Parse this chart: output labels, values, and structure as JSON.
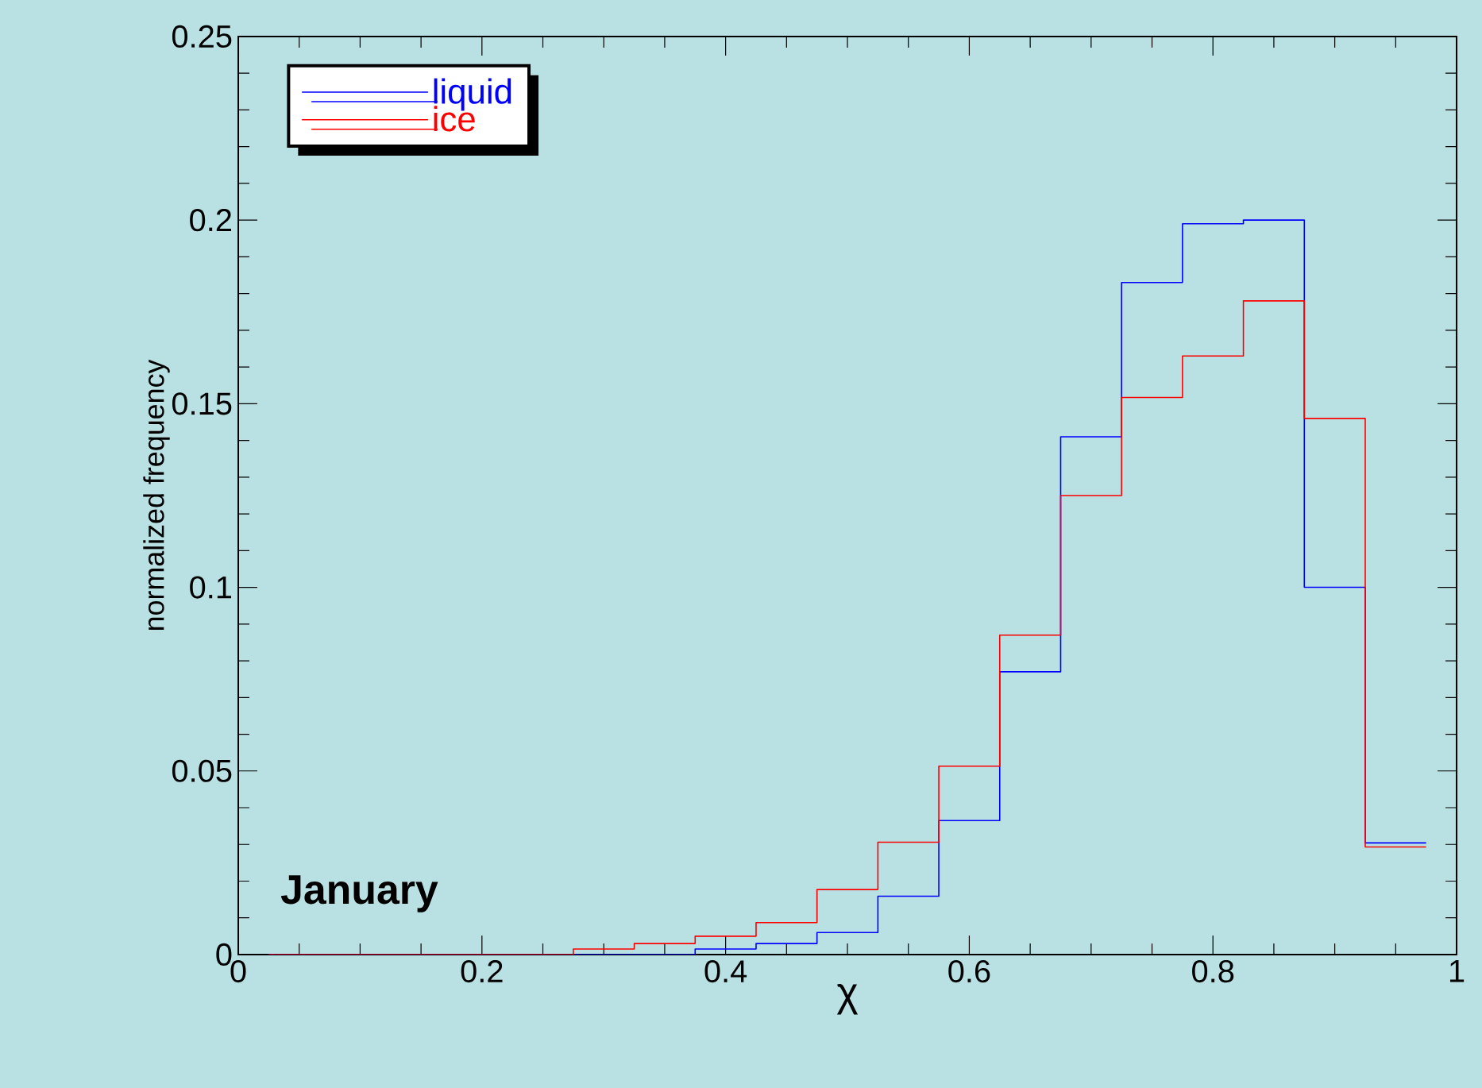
{
  "chart_data": {
    "type": "histogram",
    "xlabel": "χ",
    "ylabel": "normalized frequency",
    "bins": [
      0.025,
      0.075,
      0.125,
      0.175,
      0.225,
      0.275,
      0.325,
      0.375,
      0.425,
      0.475,
      0.525,
      0.575,
      0.625,
      0.675,
      0.725,
      0.775,
      0.825,
      0.875,
      0.925,
      0.975
    ],
    "series": [
      {
        "name": "liquid",
        "color": "#0000ff",
        "values": [
          0,
          0,
          0,
          0,
          0,
          0,
          0,
          0.0015,
          0.003,
          0.006,
          0.0159,
          0.0365,
          0.077,
          0.141,
          0.183,
          0.199,
          0.2,
          0.1,
          0.0304
        ]
      },
      {
        "name": "ice",
        "color": "#ff0000",
        "values": [
          0,
          0,
          0,
          0,
          0,
          0.0015,
          0.003,
          0.005,
          0.0087,
          0.0177,
          0.0306,
          0.0513,
          0.087,
          0.125,
          0.1517,
          0.163,
          0.178,
          0.146,
          0.0293
        ]
      }
    ],
    "xlim": [
      0,
      1
    ],
    "ylim": [
      0,
      0.25
    ],
    "xticks": [
      0,
      0.2,
      0.4,
      0.6,
      0.8,
      1
    ],
    "yticks": [
      0,
      0.05,
      0.1,
      0.15,
      0.2,
      0.25
    ],
    "grid": false,
    "legend": "top left",
    "annotations": [
      "January"
    ]
  }
}
